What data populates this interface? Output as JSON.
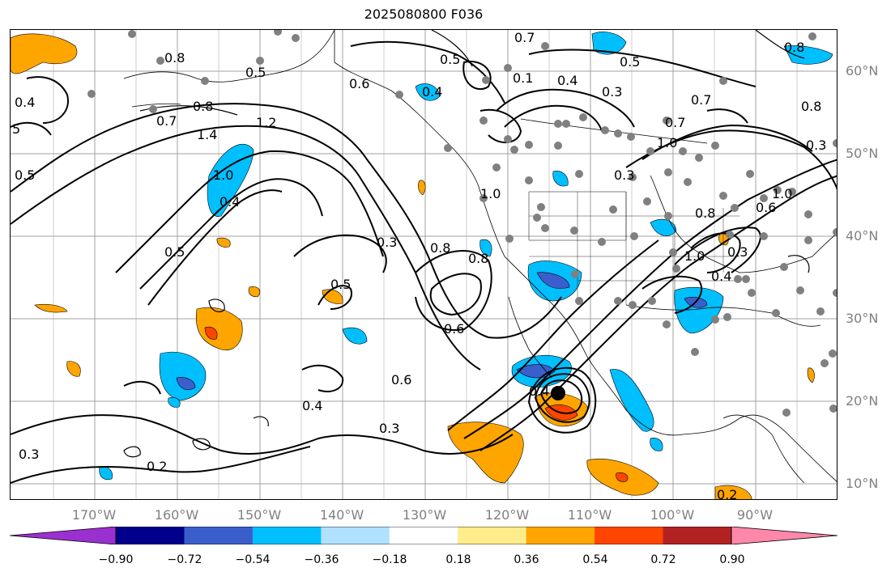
{
  "title": "2025080800 F036",
  "lat_labels": [
    "60°N",
    "50°N",
    "40°N",
    "30°N",
    "20°N",
    "10°N"
  ],
  "lon_labels": [
    "170°W",
    "160°W",
    "150°W",
    "140°W",
    "130°W",
    "120°W",
    "110°W",
    "100°W",
    "90°W"
  ],
  "colorbar": {
    "ticks": [
      "−0.90",
      "−0.72",
      "−0.54",
      "−0.36",
      "−0.18",
      "0.18",
      "0.36",
      "0.54",
      "0.72",
      "0.90"
    ],
    "colors": [
      "#9b30d0",
      "#00008b",
      "#3a5fcd",
      "#00bfff",
      "#b0e2ff",
      "#ffffff",
      "#ffec8b",
      "#ffa500",
      "#ff4500",
      "#b22222",
      "#ff88aa"
    ]
  },
  "contour_labels": [
    "0.8",
    "0.5",
    "0.7",
    "0.5",
    "0.8",
    "0.4",
    "5",
    "0.5",
    "0.6",
    "0.4",
    "0.1",
    "0.4",
    "0.3",
    "0.7",
    "0.8",
    "1.4",
    "0.8",
    "0.7",
    "1.2",
    "1.0",
    "0.4",
    "0.5",
    "0.5",
    "0.3",
    "1.0",
    "0.8",
    "0.7",
    "1.0",
    "0.3",
    "0.3",
    "0.8",
    "1.0",
    "0.6",
    "0.5",
    "0.4",
    "0.6",
    "0.6",
    "0.3",
    "0.4",
    "0.2",
    "0.3",
    "0.8",
    "0.3",
    "1.0",
    "0.4",
    "0.2"
  ],
  "colors": {
    "frame": "#000000",
    "grid": "#a0a0a0",
    "axis_text": "#808080",
    "contour": "#000000",
    "station_dot": "#808080"
  }
}
